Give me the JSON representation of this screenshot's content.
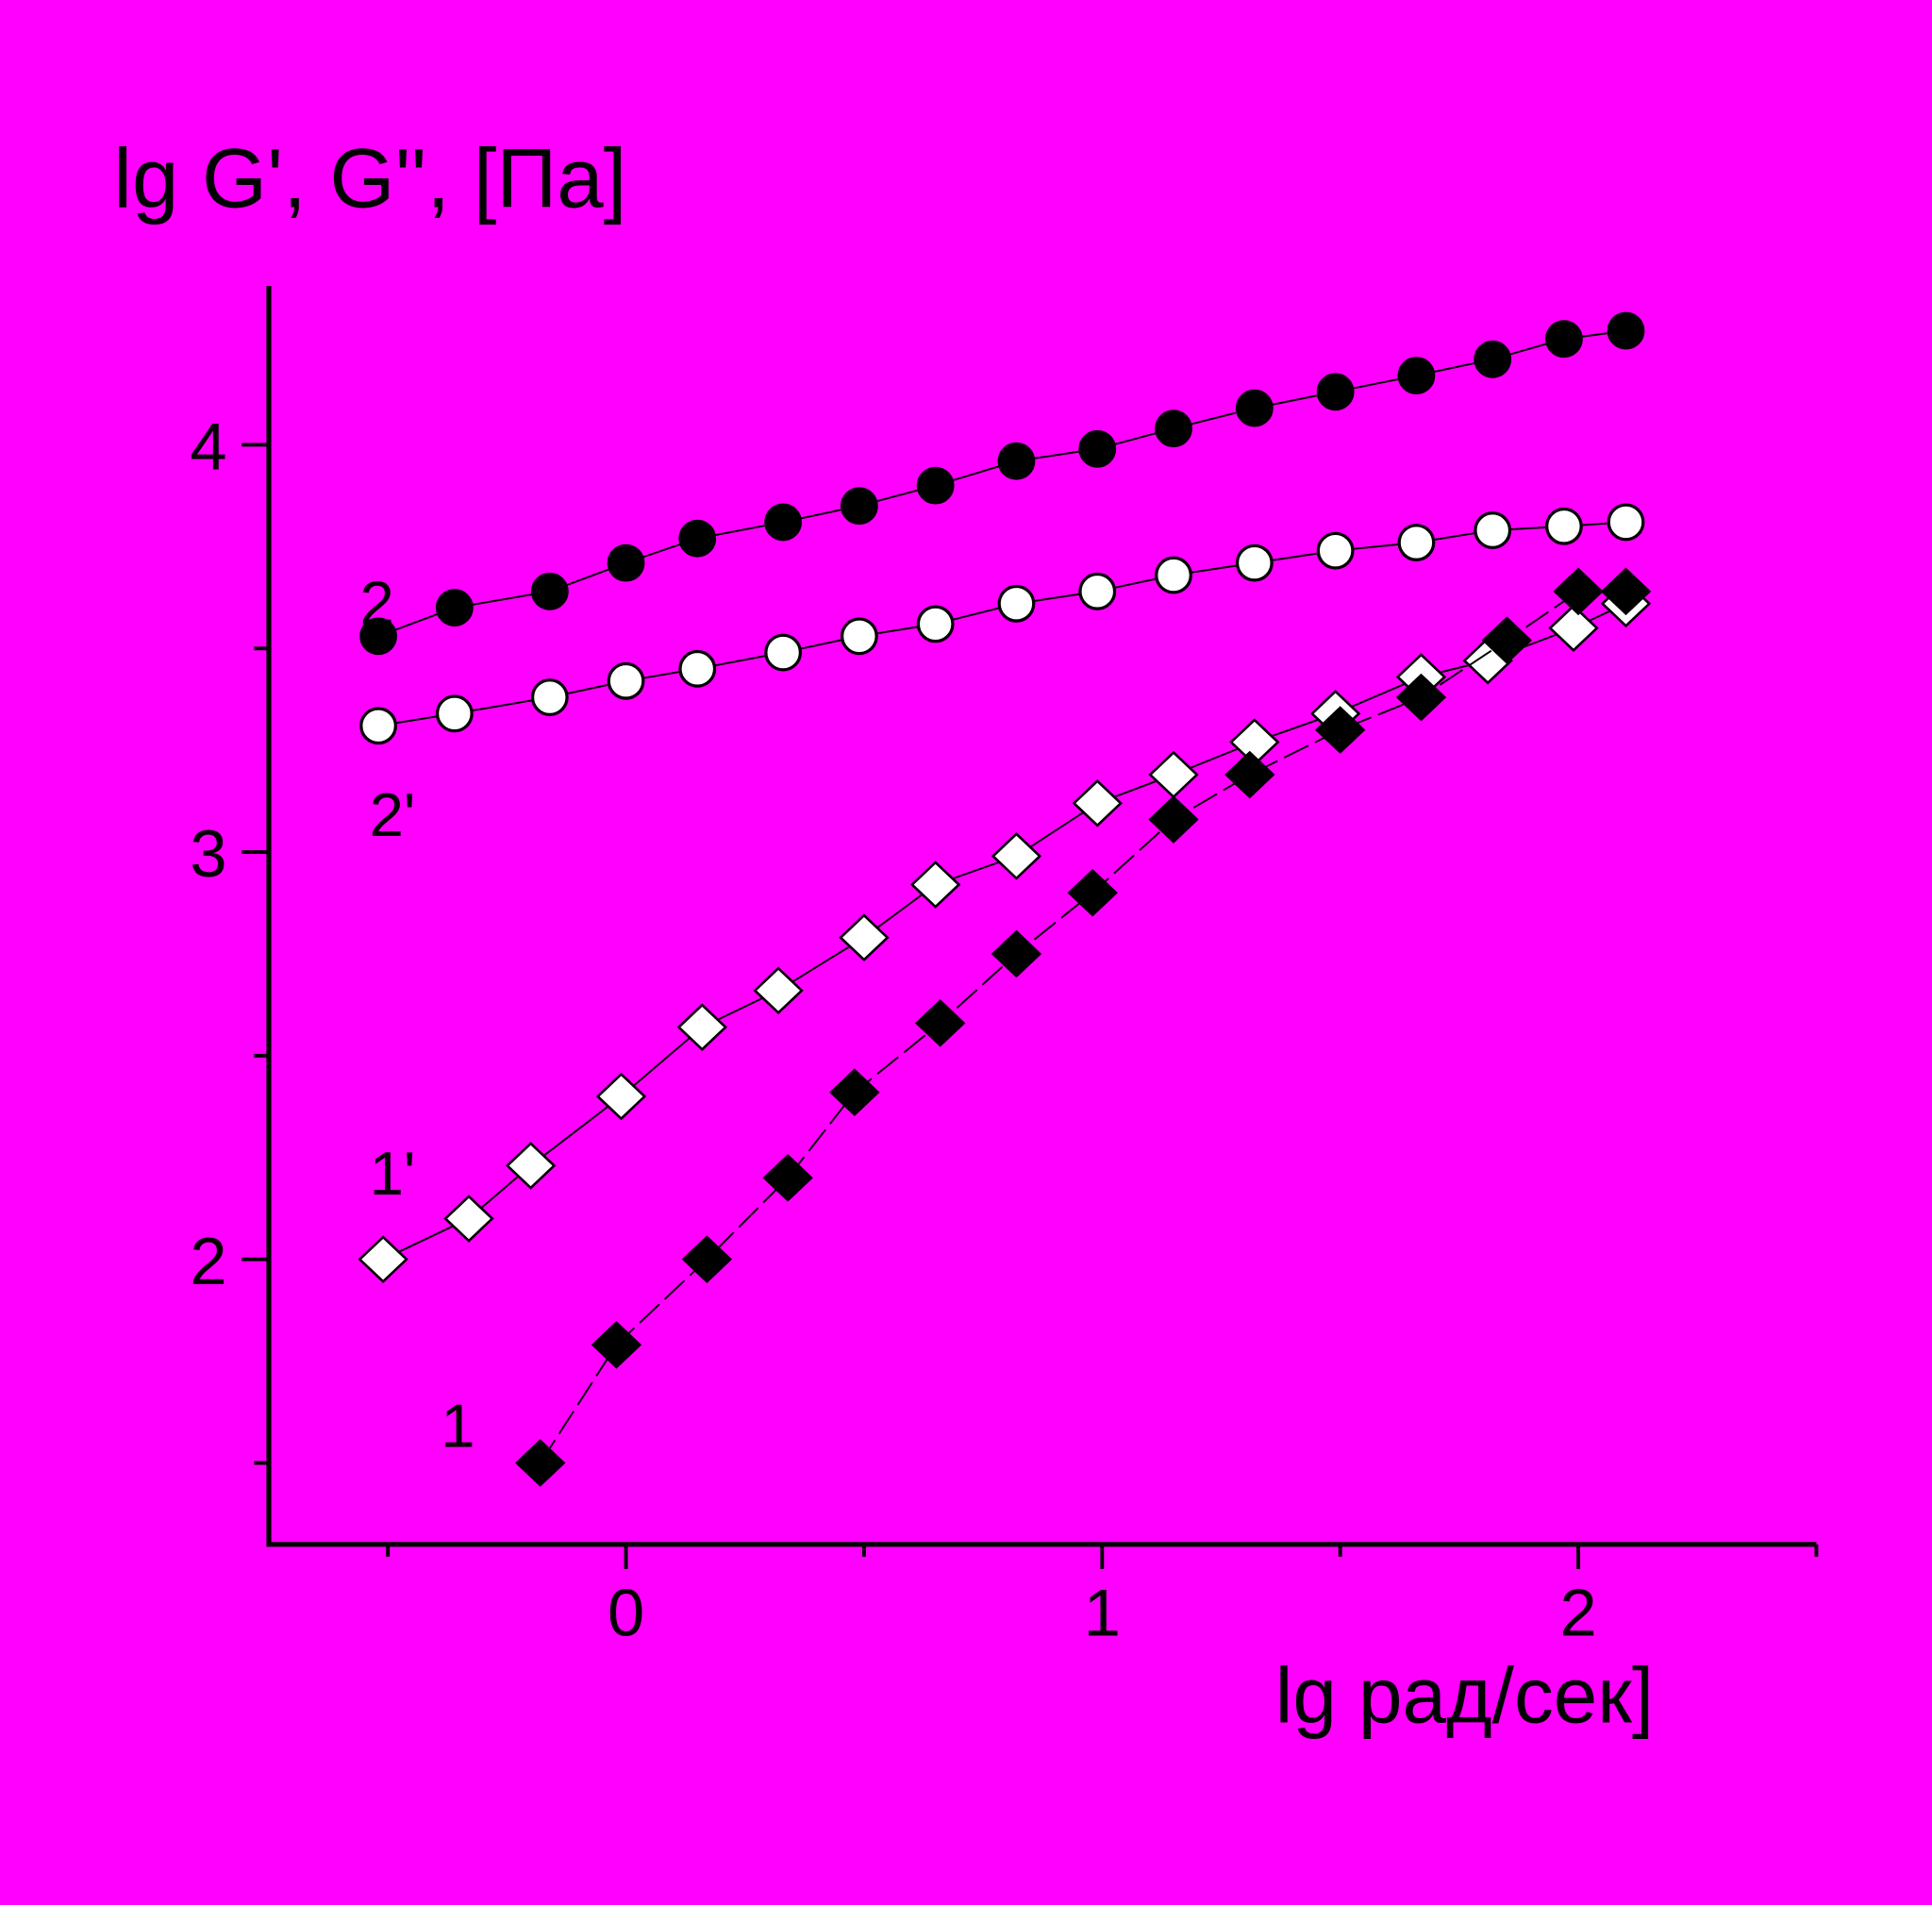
{
  "background_color": "#FF00FF",
  "chart_data": {
    "type": "scatter",
    "ylabel": "lg G', G'', [Па]",
    "xlabel": "lg рад/сек]",
    "xlim": [
      -0.75,
      2.5
    ],
    "ylim": [
      1.3,
      4.39
    ],
    "x_ticks": [
      {
        "v": 0,
        "label": "0"
      },
      {
        "v": 1,
        "label": "1"
      },
      {
        "v": 2,
        "label": "2"
      }
    ],
    "x_minor_ticks": [
      -0.5,
      0.5,
      1.5,
      2.5
    ],
    "y_ticks": [
      {
        "v": 2,
        "label": "2"
      },
      {
        "v": 3,
        "label": "3"
      },
      {
        "v": 4,
        "label": "4"
      }
    ],
    "y_minor_ticks": [
      1.5,
      2.5,
      3.5
    ],
    "grid": false,
    "series": [
      {
        "name": "2",
        "marker": "circle",
        "fill": "#000000",
        "line": "solid",
        "label_pos": [
          -0.52,
          3.62
        ],
        "x": [
          -0.52,
          -0.36,
          -0.16,
          0.0,
          0.15,
          0.33,
          0.49,
          0.65,
          0.82,
          0.99,
          1.15,
          1.32,
          1.49,
          1.66,
          1.82,
          1.97,
          2.1
        ],
        "y": [
          3.53,
          3.6,
          3.64,
          3.71,
          3.77,
          3.81,
          3.85,
          3.9,
          3.96,
          3.99,
          4.04,
          4.09,
          4.13,
          4.17,
          4.21,
          4.26,
          4.28
        ]
      },
      {
        "name": "2'",
        "marker": "circle",
        "fill": "#FFFFFF",
        "line": "solid",
        "label_pos": [
          -0.5,
          3.1
        ],
        "x": [
          -0.52,
          -0.36,
          -0.16,
          0.0,
          0.15,
          0.33,
          0.49,
          0.65,
          0.82,
          0.99,
          1.15,
          1.32,
          1.49,
          1.66,
          1.82,
          1.97,
          2.1
        ],
        "y": [
          3.31,
          3.34,
          3.38,
          3.42,
          3.45,
          3.49,
          3.53,
          3.56,
          3.61,
          3.64,
          3.68,
          3.71,
          3.74,
          3.76,
          3.79,
          3.8,
          3.81
        ]
      },
      {
        "name": "1'",
        "marker": "diamond",
        "fill": "#FFFFFF",
        "line": "solid",
        "label_pos": [
          -0.5,
          2.22
        ],
        "x": [
          -0.51,
          -0.33,
          -0.2,
          -0.01,
          0.16,
          0.32,
          0.5,
          0.65,
          0.82,
          0.99,
          1.15,
          1.32,
          1.49,
          1.67,
          1.81,
          1.99,
          2.1
        ],
        "y": [
          2.0,
          2.1,
          2.23,
          2.4,
          2.57,
          2.66,
          2.79,
          2.92,
          2.99,
          3.12,
          3.19,
          3.27,
          3.34,
          3.43,
          3.47,
          3.55,
          3.61
        ]
      },
      {
        "name": "1",
        "marker": "diamond",
        "fill": "#000000",
        "line": "dashed",
        "label_pos": [
          -0.35,
          1.6
        ],
        "x": [
          -0.18,
          -0.02,
          0.17,
          0.34,
          0.48,
          0.66,
          0.82,
          0.98,
          1.15,
          1.31,
          1.5,
          1.67,
          1.85,
          2.0,
          2.1
        ],
        "y": [
          1.5,
          1.79,
          2.0,
          2.2,
          2.41,
          2.58,
          2.75,
          2.9,
          3.08,
          3.19,
          3.3,
          3.38,
          3.52,
          3.64,
          3.64
        ]
      }
    ]
  }
}
